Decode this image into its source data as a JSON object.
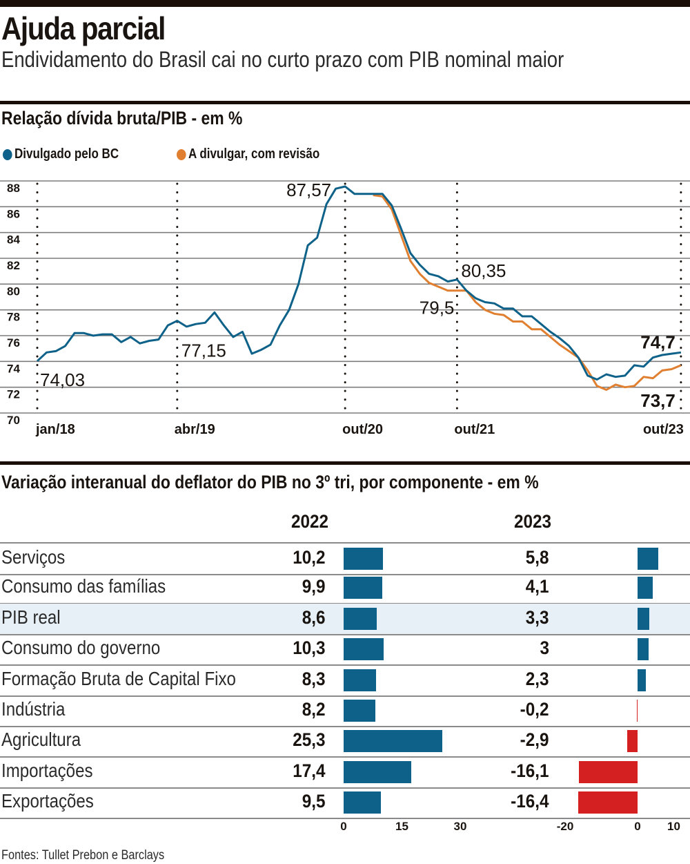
{
  "header": {
    "title": "Ajuda parcial",
    "subtitle": "Endividamento do Brasil cai no curto prazo com PIB nominal maior"
  },
  "colors": {
    "blue": "#0e6289",
    "orange": "#e07f2f",
    "negative": "#d42020",
    "highlight_row": "#e7f0f7",
    "rule": "#1a0f08"
  },
  "chart_data": [
    {
      "type": "line",
      "title": "Relação dívida bruta/PIB - em %",
      "xlabel": "",
      "ylabel": "",
      "ylim": [
        70,
        88
      ],
      "yticks": [
        "88",
        "86",
        "84",
        "82",
        "80",
        "78",
        "76",
        "74",
        "72",
        "70"
      ],
      "ytick_values": [
        88,
        86,
        84,
        82,
        80,
        78,
        76,
        74,
        72,
        70
      ],
      "grid": true,
      "legend_position": "top-left",
      "x_start": "jan/18",
      "x_frequency": "monthly",
      "xtick_labels": [
        {
          "label": "jan/18",
          "index": 0
        },
        {
          "label": "abr/19",
          "index": 15
        },
        {
          "label": "out/20",
          "index": 33
        },
        {
          "label": "out/21",
          "index": 45
        },
        {
          "label": "out/23",
          "index": 69
        }
      ],
      "series": [
        {
          "name": "Divulgado pelo BC",
          "color": "#0e6289",
          "start_index": 0,
          "values": [
            74.03,
            74.7,
            74.8,
            75.2,
            76.2,
            76.2,
            76.0,
            76.1,
            76.1,
            75.5,
            75.9,
            75.4,
            75.6,
            75.7,
            76.8,
            77.15,
            76.7,
            76.9,
            77.0,
            77.8,
            76.8,
            75.9,
            76.3,
            74.6,
            74.9,
            75.3,
            76.8,
            78.0,
            80.0,
            83.0,
            83.6,
            86.2,
            87.4,
            87.57,
            87.0,
            87.0,
            87.0,
            87.0,
            86.1,
            84.3,
            82.4,
            81.5,
            80.8,
            80.6,
            80.2,
            80.35,
            79.5,
            78.9,
            78.6,
            78.5,
            78.1,
            78.1,
            77.5,
            77.5,
            76.9,
            76.3,
            75.8,
            75.2,
            74.3,
            72.9,
            72.6,
            73.0,
            72.8,
            72.9,
            73.7,
            73.6,
            74.3,
            74.5,
            74.6,
            74.7
          ]
        },
        {
          "name": "A divulgar, com revisão",
          "color": "#e07f2f",
          "start_index": 36,
          "values": [
            86.9,
            86.8,
            85.8,
            83.8,
            81.8,
            80.8,
            80.1,
            79.8,
            79.5,
            79.5,
            79.5,
            78.6,
            78.0,
            77.7,
            77.6,
            77.1,
            77.1,
            76.5,
            76.5,
            75.9,
            75.3,
            74.8,
            74.3,
            73.3,
            72.1,
            71.8,
            72.2,
            72.0,
            72.1,
            72.8,
            72.7,
            73.3,
            73.4,
            73.7
          ]
        }
      ],
      "annotations": [
        {
          "text": "74,03",
          "series": 0,
          "index": 0,
          "bold": false
        },
        {
          "text": "77,15",
          "series": 0,
          "index": 15,
          "bold": false
        },
        {
          "text": "87,57",
          "series": 0,
          "index": 33,
          "bold": false
        },
        {
          "text": "80,35",
          "series": 0,
          "index": 45,
          "bold": false
        },
        {
          "text": "79,5",
          "series": 1,
          "index": 45,
          "bold": false
        },
        {
          "text": "74,7",
          "series": 0,
          "index": 69,
          "bold": true
        },
        {
          "text": "73,7",
          "series": 1,
          "index": 69,
          "bold": true
        }
      ]
    },
    {
      "type": "bar",
      "orientation": "horizontal",
      "title": "Variação interanual do deflator do PIB no 3º tri, por componente - em %",
      "categories": [
        "Serviços",
        "Consumo das famílias",
        "PIB real",
        "Consumo do governo",
        "Formação Bruta de Capital Fixo",
        "Indústria",
        "Agricultura",
        "Importações",
        "Exportações"
      ],
      "highlighted_category": "PIB real",
      "series": [
        {
          "name": "2022",
          "values": [
            10.2,
            9.9,
            8.6,
            10.3,
            8.3,
            8.2,
            25.3,
            17.4,
            9.5
          ],
          "labels": [
            "10,2",
            "9,9",
            "8,6",
            "10,3",
            "8,3",
            "8,2",
            "25,3",
            "17,4",
            "9,5"
          ],
          "xlim": [
            0,
            30
          ],
          "xticks": [
            "0",
            "15",
            "30"
          ]
        },
        {
          "name": "2023",
          "values": [
            5.8,
            4.1,
            3.3,
            3.0,
            2.3,
            -0.2,
            -2.9,
            -16.1,
            -16.4
          ],
          "labels": [
            "5,8",
            "4,1",
            "3,3",
            "3",
            "2,3",
            "-0,2",
            "-2,9",
            "-16,1",
            "-16,4"
          ],
          "xlim": [
            -20,
            10
          ],
          "xticks": [
            "-20",
            "0",
            "10"
          ]
        }
      ]
    }
  ],
  "footer": {
    "source": "Fontes: Tullet Prebon e Barclays"
  }
}
